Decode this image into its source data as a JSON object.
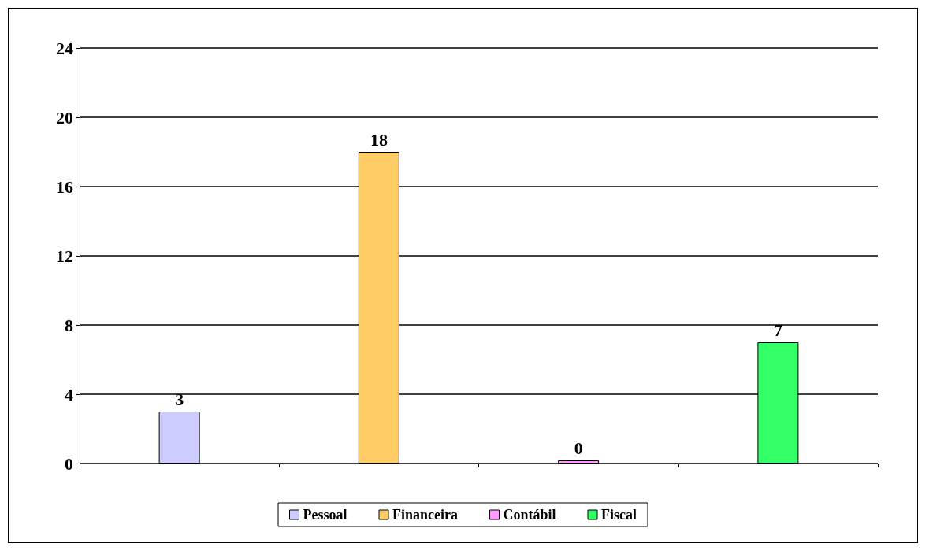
{
  "chart_data": {
    "type": "bar",
    "categories": [
      null,
      null,
      null,
      null
    ],
    "series": [
      {
        "name": "Pessoal",
        "color": "#ccccff",
        "values": [
          3,
          null,
          null,
          null
        ]
      },
      {
        "name": "Financeira",
        "color": "#ffcc66",
        "values": [
          null,
          18,
          null,
          null
        ]
      },
      {
        "name": "Contábil",
        "color": "#ff99ff",
        "values": [
          null,
          null,
          0,
          null
        ]
      },
      {
        "name": "Fiscal",
        "color": "#33ff66",
        "values": [
          null,
          null,
          null,
          7
        ]
      }
    ],
    "ylim": [
      0,
      24
    ],
    "yticks": [
      0,
      4,
      8,
      12,
      16,
      20,
      24
    ],
    "grid": "y",
    "legend": "bottom",
    "data_labels": true
  }
}
